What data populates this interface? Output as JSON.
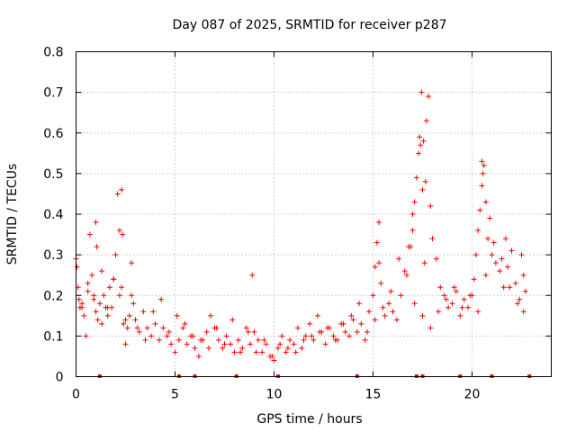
{
  "chart_data": {
    "type": "scatter",
    "title": "Day 087 of 2025, SRMTID for receiver p287",
    "xlabel": "GPS time / hours",
    "ylabel": "SRMTID / TECUs",
    "xlim": [
      0,
      24
    ],
    "ylim": [
      0,
      0.8
    ],
    "x_ticks": [
      0,
      5,
      10,
      15,
      20
    ],
    "x_tick_labels": [
      "0",
      "5",
      "10",
      "15",
      "20"
    ],
    "y_ticks": [
      0,
      0.1,
      0.2,
      0.3,
      0.4,
      0.5,
      0.6,
      0.7,
      0.8
    ],
    "y_tick_labels": [
      "0",
      "0.1",
      "0.2",
      "0.3",
      "0.4",
      "0.5",
      "0.6",
      "0.7",
      "0.8"
    ],
    "grid": true,
    "marker": "+",
    "color": "#ff0000",
    "series": [
      {
        "name": "SRMTID",
        "x": [
          0.0,
          0.05,
          0.1,
          0.15,
          0.2,
          0.3,
          0.4,
          0.5,
          0.6,
          0.7,
          0.8,
          0.9,
          1.0,
          1.1,
          1.2,
          1.3,
          1.4,
          1.5,
          1.6,
          1.7,
          1.8,
          1.9,
          2.0,
          2.1,
          2.2,
          2.3,
          2.4,
          2.5,
          2.6,
          2.7,
          2.8,
          2.9,
          3.0,
          3.2,
          3.4,
          3.6,
          3.8,
          4.0,
          4.2,
          4.4,
          4.6,
          4.8,
          5.0,
          5.2,
          5.4,
          5.6,
          5.8,
          6.0,
          6.2,
          6.4,
          6.6,
          6.8,
          7.0,
          7.2,
          7.4,
          7.6,
          7.8,
          8.0,
          8.2,
          8.4,
          8.6,
          8.8,
          9.0,
          9.2,
          9.4,
          9.6,
          9.8,
          10.0,
          10.2,
          10.4,
          10.6,
          10.8,
          11.0,
          11.2,
          11.4,
          11.6,
          11.8,
          12.0,
          12.2,
          12.4,
          12.6,
          12.8,
          13.0,
          13.2,
          13.4,
          13.6,
          13.8,
          14.0,
          14.2,
          14.4,
          14.6,
          14.8,
          15.0,
          15.1,
          15.2,
          15.3,
          15.4,
          15.6,
          15.8,
          16.0,
          16.2,
          16.4,
          16.6,
          16.8,
          17.0,
          17.1,
          17.2,
          17.3,
          17.4,
          17.5,
          17.6,
          17.7,
          17.8,
          17.9,
          18.0,
          18.2,
          18.4,
          18.6,
          18.8,
          19.0,
          19.2,
          19.4,
          19.6,
          19.8,
          20.0,
          20.1,
          20.2,
          20.3,
          20.4,
          20.5,
          20.6,
          20.7,
          20.8,
          20.9,
          21.0,
          21.2,
          21.4,
          21.6,
          21.8,
          22.0,
          22.2,
          22.4,
          22.6,
          22.7,
          0.3,
          0.6,
          0.9,
          1.3,
          1.6,
          1.9,
          2.2,
          2.5,
          2.8,
          3.1,
          3.5,
          3.9,
          4.3,
          4.7,
          5.1,
          5.5,
          5.9,
          6.3,
          6.7,
          7.1,
          7.5,
          7.9,
          8.3,
          8.7,
          9.1,
          9.5,
          9.9,
          10.3,
          10.7,
          11.1,
          11.5,
          11.9,
          12.3,
          12.7,
          13.1,
          13.5,
          13.9,
          14.3,
          14.7,
          15.1,
          15.5,
          15.9,
          16.3,
          16.7,
          17.1,
          17.5,
          17.9,
          18.3,
          18.7,
          19.1,
          19.5,
          19.9,
          20.3,
          20.7,
          21.1,
          21.5,
          21.9,
          22.3,
          22.6,
          17.35,
          17.45,
          17.55,
          17.65,
          16.9,
          17.0,
          2.3,
          2.35,
          1.0,
          1.05,
          8.9,
          15.3,
          20.5,
          20.55,
          21.7,
          22.5
        ],
        "y": [
          0.29,
          0.27,
          0.22,
          0.19,
          0.17,
          0.18,
          0.15,
          0.1,
          0.21,
          0.35,
          0.25,
          0.19,
          0.16,
          0.14,
          0.18,
          0.26,
          0.2,
          0.17,
          0.15,
          0.22,
          0.17,
          0.24,
          0.3,
          0.45,
          0.36,
          0.22,
          0.13,
          0.08,
          0.12,
          0.15,
          0.2,
          0.18,
          0.14,
          0.11,
          0.16,
          0.12,
          0.1,
          0.13,
          0.09,
          0.12,
          0.1,
          0.08,
          0.06,
          0.09,
          0.12,
          0.08,
          0.1,
          0.07,
          0.05,
          0.09,
          0.11,
          0.15,
          0.12,
          0.09,
          0.07,
          0.1,
          0.08,
          0.06,
          0.09,
          0.07,
          0.12,
          0.08,
          0.11,
          0.09,
          0.06,
          0.08,
          0.05,
          0.04,
          0.07,
          0.1,
          0.06,
          0.09,
          0.08,
          0.12,
          0.07,
          0.1,
          0.13,
          0.09,
          0.15,
          0.11,
          0.08,
          0.12,
          0.1,
          0.09,
          0.13,
          0.11,
          0.1,
          0.14,
          0.11,
          0.13,
          0.09,
          0.16,
          0.2,
          0.27,
          0.33,
          0.38,
          0.23,
          0.15,
          0.18,
          0.16,
          0.14,
          0.2,
          0.26,
          0.32,
          0.36,
          0.43,
          0.49,
          0.55,
          0.57,
          0.46,
          0.28,
          0.63,
          0.69,
          0.42,
          0.34,
          0.29,
          0.22,
          0.2,
          0.17,
          0.18,
          0.21,
          0.15,
          0.19,
          0.17,
          0.2,
          0.24,
          0.3,
          0.36,
          0.41,
          0.47,
          0.52,
          0.43,
          0.34,
          0.39,
          0.3,
          0.28,
          0.26,
          0.22,
          0.27,
          0.31,
          0.23,
          0.19,
          0.25,
          0.21,
          0.17,
          0.23,
          0.2,
          0.13,
          0.17,
          0.24,
          0.2,
          0.14,
          0.28,
          0.12,
          0.09,
          0.16,
          0.19,
          0.11,
          0.15,
          0.13,
          0.1,
          0.09,
          0.07,
          0.12,
          0.08,
          0.14,
          0.06,
          0.11,
          0.06,
          0.09,
          0.05,
          0.08,
          0.07,
          0.06,
          0.09,
          0.1,
          0.11,
          0.12,
          0.09,
          0.13,
          0.15,
          0.18,
          0.11,
          0.14,
          0.17,
          0.21,
          0.29,
          0.25,
          0.18,
          0.15,
          0.12,
          0.16,
          0.19,
          0.22,
          0.17,
          0.2,
          0.16,
          0.25,
          0.33,
          0.29,
          0.22,
          0.18,
          0.16,
          0.59,
          0.7,
          0.58,
          0.48,
          0.32,
          0.4,
          0.46,
          0.35,
          0.38,
          0.32,
          0.25,
          0.28,
          0.53,
          0.5,
          0.34,
          0.3
        ]
      }
    ],
    "bottom_marks_x": [
      1.2,
      5.2,
      6.0,
      8.1,
      10.2,
      14.2,
      17.2,
      17.5,
      19.4,
      21.0,
      22.9
    ]
  }
}
